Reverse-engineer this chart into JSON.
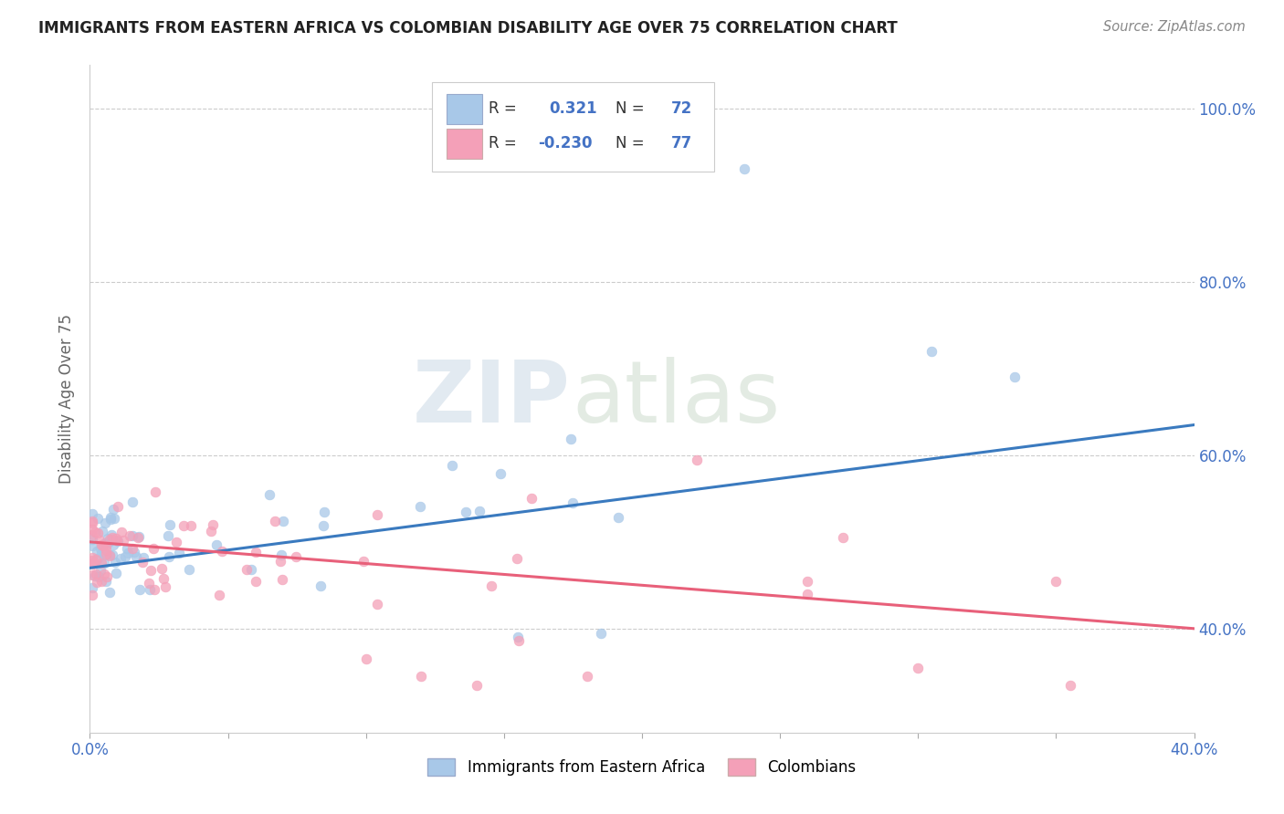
{
  "title": "IMMIGRANTS FROM EASTERN AFRICA VS COLOMBIAN DISABILITY AGE OVER 75 CORRELATION CHART",
  "source": "Source: ZipAtlas.com",
  "ylabel": "Disability Age Over 75",
  "xlim": [
    0.0,
    0.4
  ],
  "ylim": [
    0.28,
    1.05
  ],
  "x_tick_positions": [
    0.0,
    0.05,
    0.1,
    0.15,
    0.2,
    0.25,
    0.3,
    0.35,
    0.4
  ],
  "x_tick_labels": [
    "0.0%",
    "",
    "",
    "",
    "",
    "",
    "",
    "",
    "40.0%"
  ],
  "y_tick_positions": [
    0.4,
    0.6,
    0.8,
    1.0
  ],
  "y_tick_labels": [
    "40.0%",
    "60.0%",
    "80.0%",
    "100.0%"
  ],
  "blue_R": 0.321,
  "blue_N": 72,
  "pink_R": -0.23,
  "pink_N": 77,
  "blue_color": "#a8c8e8",
  "pink_color": "#f4a0b8",
  "blue_line_color": "#3a7abf",
  "pink_line_color": "#e8607a",
  "blue_line_y0": 0.47,
  "blue_line_y1": 0.635,
  "pink_line_y0": 0.5,
  "pink_line_y1": 0.4,
  "legend_label_blue": "Immigrants from Eastern Africa",
  "legend_label_pink": "Colombians"
}
